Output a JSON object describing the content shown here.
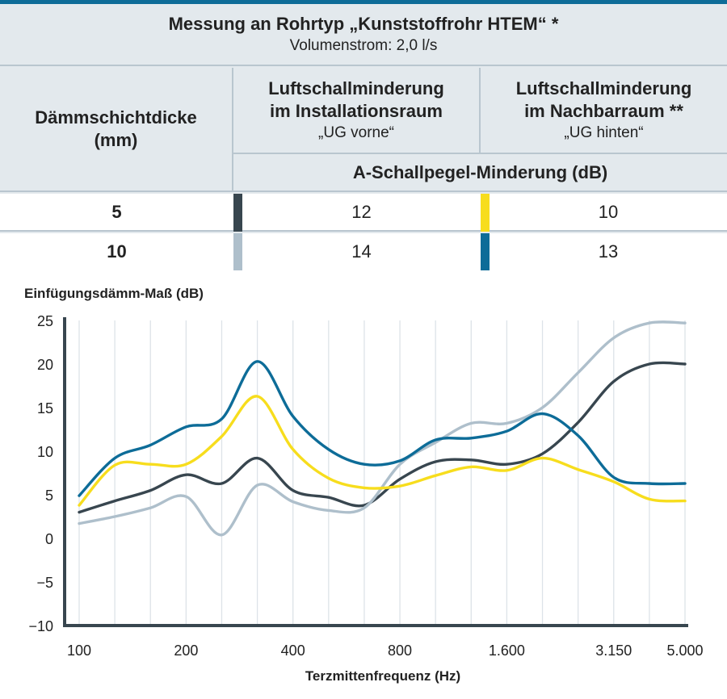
{
  "table": {
    "title": "Messung an Rohrtyp „Kunststoffrohr HTEM“ *",
    "subtitle": "Volumenstrom: 2,0 l/s",
    "col1_line1": "Dämmschichtdicke",
    "col1_line2": "(mm)",
    "col2_line1": "Luftschallminderung",
    "col2_line2": "im Installationsraum",
    "col2_sub": "„UG vorne“",
    "col3_line1": "Luftschallminderung",
    "col3_line2": "im Nachbarraum **",
    "col3_sub": "„UG hinten“",
    "unit_header": "A-Schallpegel-Minderung (dB)",
    "rows": [
      {
        "thickness": "5",
        "installationsraum": "12",
        "nachbarraum": "10",
        "color_installation": "#38464f",
        "color_nachbar": "#f7dd1d"
      },
      {
        "thickness": "10",
        "installationsraum": "14",
        "nachbarraum": "13",
        "color_installation": "#aebfcb",
        "color_nachbar": "#0d6c98"
      }
    ]
  },
  "chart_data": {
    "type": "line",
    "ylabel": "Einfügungsdämm-Maß (dB)",
    "xlabel": "Terzmittenfrequenz (Hz)",
    "ylim": [
      -10,
      25
    ],
    "yticks": [
      "25",
      "20",
      "15",
      "10",
      "5",
      "0",
      "−5",
      "−10"
    ],
    "x": [
      "100",
      "125",
      "160",
      "200",
      "250",
      "315",
      "400",
      "500",
      "630",
      "800",
      "1.000",
      "1.250",
      "1.600",
      "2.000",
      "2.500",
      "3.150",
      "4.000",
      "5.000"
    ],
    "xtick_labels": [
      "100",
      "200",
      "400",
      "800",
      "1.600",
      "3.150",
      "5.000"
    ],
    "series": [
      {
        "name": "5 mm Installationsraum",
        "color": "#38464f",
        "values": [
          3,
          4.3,
          5.5,
          7.3,
          6.3,
          9.2,
          5.5,
          4.7,
          3.8,
          6.8,
          8.8,
          9.0,
          8.5,
          9.7,
          13.3,
          18.0,
          20.0,
          20.0
        ]
      },
      {
        "name": "10 mm Installationsraum",
        "color": "#aebfcb",
        "values": [
          1.7,
          2.5,
          3.5,
          4.8,
          0.4,
          6.1,
          4.2,
          3.2,
          3.5,
          8.5,
          11.0,
          13.2,
          13.2,
          15.0,
          19.0,
          23.0,
          24.7,
          24.7
        ]
      },
      {
        "name": "5 mm Nachbarraum",
        "color": "#f7dd1d",
        "values": [
          3.8,
          8.4,
          8.5,
          8.5,
          11.7,
          16.3,
          10.2,
          6.9,
          5.8,
          6.0,
          7.2,
          8.2,
          7.8,
          9.2,
          7.9,
          6.5,
          4.5,
          4.3
        ]
      },
      {
        "name": "10 mm Nachbarraum",
        "color": "#0d6c98",
        "values": [
          4.9,
          9.2,
          10.7,
          12.8,
          13.7,
          20.3,
          14.0,
          10.2,
          8.5,
          8.9,
          11.3,
          11.5,
          12.3,
          14.3,
          11.8,
          7.0,
          6.3,
          6.3
        ]
      }
    ]
  }
}
